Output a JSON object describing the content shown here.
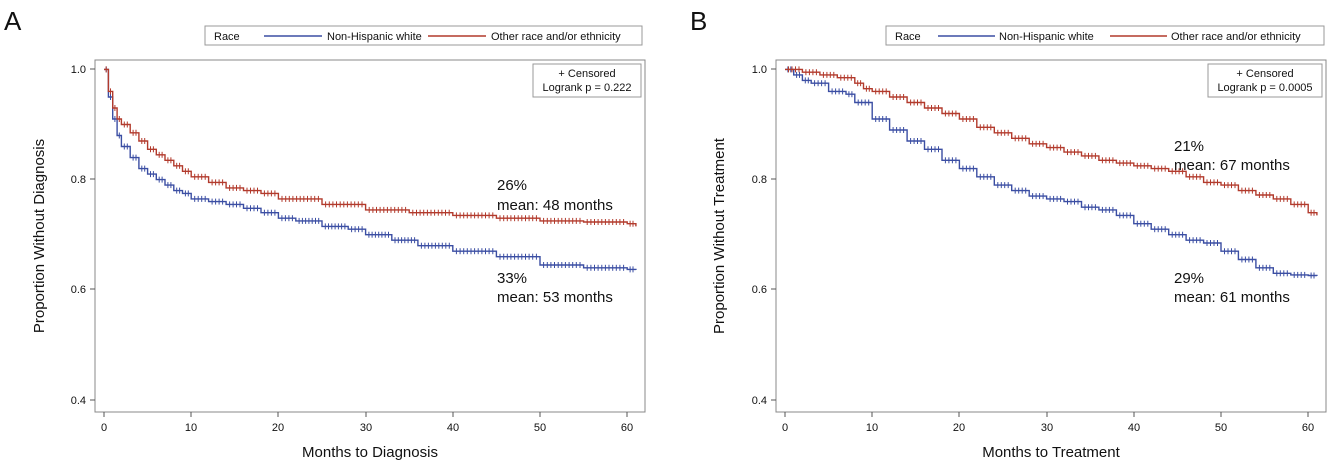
{
  "chart_data": [
    {
      "type": "line",
      "panel_label": "A",
      "legend": {
        "title": "Race",
        "entries": [
          "Non-Hispanic white",
          "Other race and/or ethnicity"
        ],
        "placement": "top"
      },
      "info_box": {
        "line1": "+ Censored",
        "line2": "Logrank p = 0.222"
      },
      "xlabel": "Months to Diagnosis",
      "ylabel": "Proportion Without Diagnosis",
      "xlim": [
        0,
        61
      ],
      "ylim": [
        0.38,
        1.02
      ],
      "xticks": [
        "0",
        "10",
        "20",
        "30",
        "40",
        "50",
        "60"
      ],
      "yticks": [
        "0.4",
        "0.6",
        "0.8",
        "1.0"
      ],
      "series": [
        {
          "name": "Non-Hispanic white",
          "color": "#3b4ea3",
          "x": [
            0,
            0.5,
            1,
            1.5,
            2,
            3,
            4,
            5,
            6,
            7,
            8,
            9,
            10,
            12,
            14,
            16,
            18,
            20,
            22,
            25,
            28,
            30,
            33,
            36,
            40,
            45,
            50,
            55,
            60,
            61
          ],
          "y": [
            1.0,
            0.95,
            0.91,
            0.88,
            0.86,
            0.84,
            0.82,
            0.81,
            0.8,
            0.79,
            0.78,
            0.775,
            0.765,
            0.76,
            0.755,
            0.748,
            0.74,
            0.73,
            0.725,
            0.715,
            0.71,
            0.7,
            0.69,
            0.68,
            0.67,
            0.66,
            0.645,
            0.64,
            0.637,
            0.636
          ]
        },
        {
          "name": "Other race and/or ethnicity",
          "color": "#b23a2c",
          "x": [
            0,
            0.5,
            1,
            1.5,
            2,
            3,
            4,
            5,
            6,
            7,
            8,
            9,
            10,
            12,
            14,
            16,
            18,
            20,
            25,
            30,
            35,
            40,
            45,
            50,
            55,
            60,
            61
          ],
          "y": [
            1.0,
            0.96,
            0.93,
            0.91,
            0.9,
            0.885,
            0.87,
            0.855,
            0.845,
            0.835,
            0.825,
            0.815,
            0.805,
            0.795,
            0.785,
            0.78,
            0.775,
            0.765,
            0.755,
            0.745,
            0.74,
            0.735,
            0.73,
            0.725,
            0.723,
            0.72,
            0.715
          ]
        }
      ],
      "annotations": [
        {
          "line1": "26%",
          "line2": "mean: 48 months"
        },
        {
          "line1": "33%",
          "line2": "mean: 53 months"
        }
      ]
    },
    {
      "type": "line",
      "panel_label": "B",
      "legend": {
        "title": "Race",
        "entries": [
          "Non-Hispanic white",
          "Other race and/or ethnicity"
        ],
        "placement": "top"
      },
      "info_box": {
        "line1": "+ Censored",
        "line2": "Logrank p = 0.0005"
      },
      "xlabel": "Months to Treatment",
      "ylabel": "Proportion Without  Treatment",
      "xlim": [
        0,
        61
      ],
      "ylim": [
        0.38,
        1.02
      ],
      "xticks": [
        "0",
        "10",
        "20",
        "30",
        "40",
        "50",
        "60"
      ],
      "yticks": [
        "0.4",
        "0.6",
        "0.8",
        "1.0"
      ],
      "series": [
        {
          "name": "Non-Hispanic white",
          "color": "#3b4ea3",
          "x": [
            0,
            1,
            2,
            3,
            5,
            7,
            8,
            10,
            12,
            14,
            16,
            18,
            20,
            22,
            24,
            26,
            28,
            30,
            32,
            34,
            36,
            38,
            40,
            42,
            44,
            46,
            48,
            50,
            52,
            54,
            56,
            58,
            60,
            61
          ],
          "y": [
            1.0,
            0.99,
            0.98,
            0.975,
            0.96,
            0.955,
            0.94,
            0.91,
            0.89,
            0.87,
            0.855,
            0.835,
            0.82,
            0.805,
            0.79,
            0.78,
            0.77,
            0.765,
            0.76,
            0.75,
            0.745,
            0.735,
            0.72,
            0.71,
            0.7,
            0.69,
            0.685,
            0.67,
            0.655,
            0.64,
            0.63,
            0.627,
            0.626,
            0.625
          ]
        },
        {
          "name": "Other race and/or ethnicity",
          "color": "#b23a2c",
          "x": [
            0,
            2,
            4,
            6,
            8,
            9,
            10,
            12,
            14,
            16,
            18,
            20,
            22,
            24,
            26,
            28,
            30,
            32,
            34,
            36,
            38,
            40,
            42,
            44,
            46,
            48,
            50,
            52,
            54,
            56,
            58,
            60,
            61
          ],
          "y": [
            1.0,
            0.995,
            0.99,
            0.985,
            0.975,
            0.965,
            0.96,
            0.95,
            0.94,
            0.93,
            0.92,
            0.91,
            0.895,
            0.885,
            0.875,
            0.865,
            0.858,
            0.85,
            0.843,
            0.835,
            0.83,
            0.825,
            0.82,
            0.815,
            0.805,
            0.795,
            0.79,
            0.78,
            0.772,
            0.765,
            0.755,
            0.74,
            0.735
          ]
        }
      ],
      "annotations": [
        {
          "line1": "21%",
          "line2": "mean: 67 months"
        },
        {
          "line1": "29%",
          "line2": "mean: 61 months"
        }
      ]
    }
  ]
}
